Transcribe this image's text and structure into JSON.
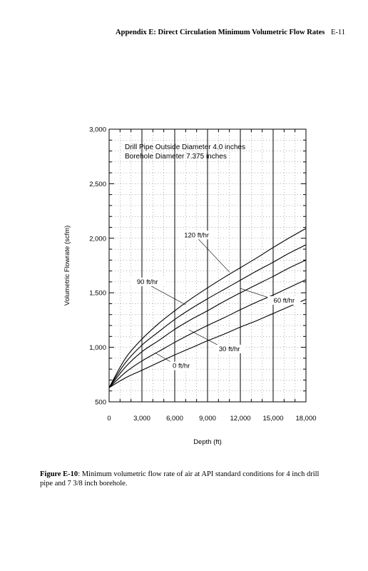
{
  "header": {
    "title": "Appendix E: Direct Circulation Minimum Volumetric Flow Rates",
    "page_number": "E-11"
  },
  "chart_data": {
    "type": "line",
    "xlabel": "Depth (ft)",
    "ylabel": "Volumetric Flowrate (scfm)",
    "xlim": [
      0,
      18000
    ],
    "ylim": [
      500,
      3000
    ],
    "x_ticks": [
      0,
      3000,
      6000,
      9000,
      12000,
      15000,
      18000
    ],
    "x_tick_labels": [
      "0",
      "3,000",
      "6,000",
      "9,000",
      "12,000",
      "15,000",
      "18,000"
    ],
    "y_ticks": [
      500,
      1000,
      1500,
      2000,
      2500,
      3000
    ],
    "y_tick_labels": [
      "500",
      "1,000",
      "1,500",
      "2,000",
      "2,500",
      "3,000"
    ],
    "grid": "dotted",
    "annotations": [
      "Drill Pipe Outside Diameter 4.0 inches",
      "Borehole Diameter 7.375 inches"
    ],
    "series": [
      {
        "name": "0 ft/hr",
        "x": [
          0,
          1500,
          3000,
          4500,
          6000,
          7500,
          9000,
          10500,
          12000,
          13500,
          15000,
          16500,
          18000
        ],
        "y": [
          630,
          720,
          790,
          860,
          930,
          995,
          1060,
          1120,
          1185,
          1245,
          1310,
          1375,
          1440
        ]
      },
      {
        "name": "30 ft/hr",
        "x": [
          0,
          1500,
          3000,
          4500,
          6000,
          7500,
          9000,
          10500,
          12000,
          13500,
          15000,
          16500,
          18000
        ],
        "y": [
          630,
          770,
          875,
          960,
          1045,
          1125,
          1200,
          1270,
          1345,
          1415,
          1480,
          1550,
          1620
        ]
      },
      {
        "name": "60 ft/hr",
        "x": [
          0,
          1500,
          3000,
          4500,
          6000,
          7500,
          9000,
          10500,
          12000,
          13500,
          15000,
          16500,
          18000
        ],
        "y": [
          630,
          820,
          960,
          1060,
          1165,
          1255,
          1335,
          1420,
          1500,
          1575,
          1650,
          1730,
          1800
        ]
      },
      {
        "name": "90 ft/hr",
        "x": [
          0,
          1500,
          3000,
          4500,
          6000,
          7500,
          9000,
          10500,
          12000,
          13500,
          15000,
          16500,
          18000
        ],
        "y": [
          630,
          860,
          1020,
          1140,
          1255,
          1355,
          1445,
          1530,
          1615,
          1700,
          1780,
          1865,
          1940
        ]
      },
      {
        "name": "120 ft/hr",
        "x": [
          0,
          1500,
          3000,
          4500,
          6000,
          7500,
          9000,
          10500,
          12000,
          13500,
          15000,
          16500,
          18000
        ],
        "y": [
          630,
          900,
          1075,
          1215,
          1335,
          1445,
          1545,
          1640,
          1730,
          1820,
          1915,
          2005,
          2090
        ]
      }
    ],
    "curve_labels": [
      {
        "text": "120 ft/hr",
        "x": 8000,
        "y": 2010,
        "to": [
          11000,
          1690
        ]
      },
      {
        "text": "90 ft/hr",
        "x": 3500,
        "y": 1580,
        "to": [
          7000,
          1390
        ]
      },
      {
        "text": "60 ft/hr",
        "x": 16000,
        "y": 1410,
        "to": [
          12000,
          1540
        ]
      },
      {
        "text": "30 ft/hr",
        "x": 11000,
        "y": 965,
        "to": [
          7300,
          1160
        ]
      },
      {
        "text": "0 ft/hr",
        "x": 6600,
        "y": 810,
        "to": [
          4200,
          950
        ]
      }
    ]
  },
  "caption": {
    "label": "Figure E-10",
    "text": ": Minimum volumetric flow rate of air at API standard conditions for 4 inch drill pipe and 7 3/8 inch borehole."
  }
}
